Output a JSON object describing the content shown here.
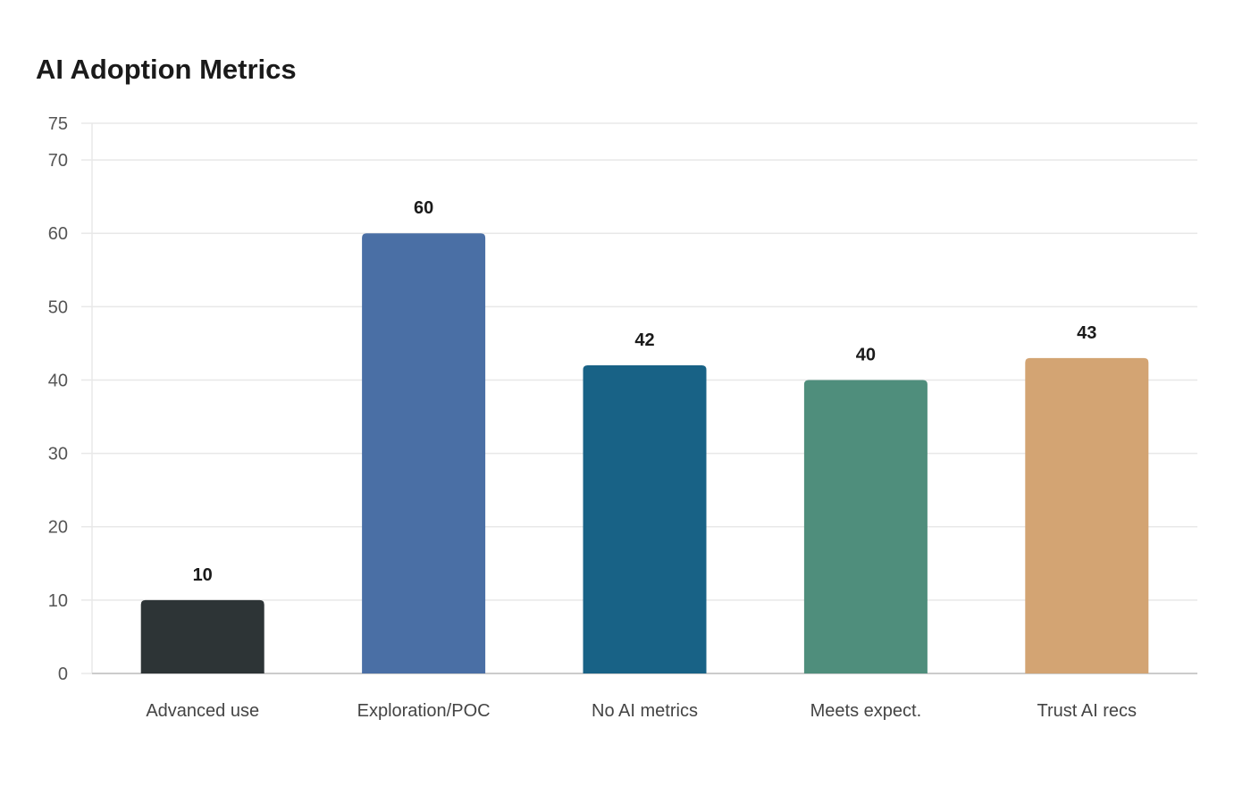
{
  "chart_data": {
    "type": "bar",
    "title": "AI Adoption Metrics",
    "categories": [
      "Advanced use",
      "Exploration/POC",
      "No AI metrics",
      "Meets expect.",
      "Trust AI recs"
    ],
    "values": [
      10,
      60,
      42,
      40,
      43
    ],
    "colors": [
      "#2d3436",
      "#4a6fa5",
      "#186286",
      "#4f8e7c",
      "#d3a473"
    ],
    "xlabel": "",
    "ylabel": "",
    "ylim": [
      0,
      75
    ],
    "yticks": [
      0,
      10,
      20,
      30,
      40,
      50,
      60,
      70,
      75
    ],
    "grid": true,
    "data_labels": true
  },
  "style": {
    "grid_color": "#e8e8e8",
    "axis_color": "#cccccc"
  }
}
